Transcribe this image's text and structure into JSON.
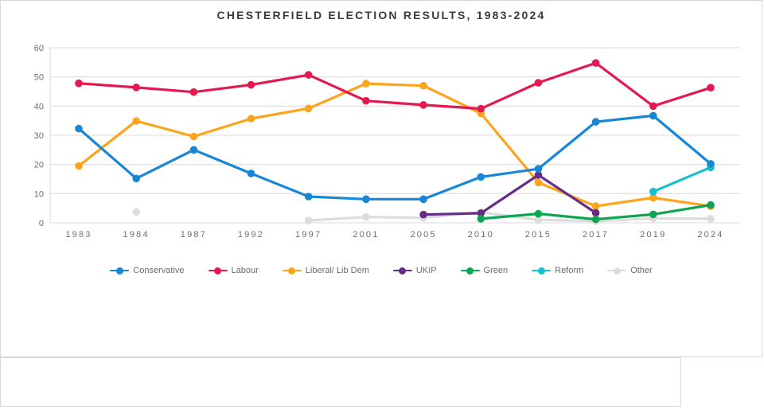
{
  "page": {
    "background": "#ffffff",
    "card_border_color": "#d7d7d7"
  },
  "chart_data": {
    "type": "line",
    "title": "CHESTERFIELD ELECTION RESULTS, 1983-2024",
    "xlabel": "",
    "ylabel": "",
    "categories": [
      "1983",
      "1984",
      "1987",
      "1992",
      "1997",
      "2001",
      "2005",
      "2010",
      "2015",
      "2017",
      "2019",
      "2024"
    ],
    "y_ticks": [
      0,
      10,
      20,
      30,
      40,
      50,
      60
    ],
    "ylim": [
      0,
      60
    ],
    "grid": true,
    "legend_position": "bottom",
    "grid_color": "#d9d9d9",
    "tick_label_color": "#6e6e6e",
    "title_color": "#3a3a3a",
    "series": [
      {
        "id": "conservative",
        "name": "Conservative",
        "color": "#1787d5",
        "values": [
          32.3,
          15.2,
          25.0,
          16.9,
          9.0,
          8.1,
          8.1,
          15.7,
          18.5,
          34.6,
          36.7,
          20.2
        ]
      },
      {
        "id": "labour",
        "name": "Labour",
        "color": "#e31a50",
        "values": [
          47.8,
          46.4,
          44.8,
          47.3,
          50.7,
          41.8,
          40.4,
          39.1,
          48.0,
          54.8,
          40.0,
          46.3
        ]
      },
      {
        "id": "libdem",
        "name": "Liberal/ Lib Dem",
        "color": "#fca41d",
        "values": [
          19.5,
          34.9,
          29.6,
          35.7,
          39.2,
          47.7,
          47.0,
          37.5,
          13.8,
          5.7,
          8.6,
          5.7
        ]
      },
      {
        "id": "ukip",
        "name": "UKIP",
        "color": "#652d87",
        "values": [
          null,
          null,
          null,
          null,
          null,
          null,
          2.8,
          3.3,
          16.4,
          3.4,
          null,
          null
        ]
      },
      {
        "id": "green",
        "name": "Green",
        "color": "#0ca651",
        "values": [
          null,
          null,
          null,
          null,
          null,
          null,
          null,
          1.4,
          3.1,
          1.2,
          2.9,
          6.1
        ]
      },
      {
        "id": "reform",
        "name": "Reform",
        "color": "#14bfce",
        "values": [
          null,
          null,
          null,
          null,
          null,
          null,
          null,
          null,
          null,
          null,
          10.7,
          19.0
        ]
      },
      {
        "id": "other",
        "name": "Other",
        "color": "#dcdcdc",
        "values": [
          null,
          3.7,
          null,
          null,
          0.8,
          2.0,
          1.7,
          3.6,
          1.0,
          0.6,
          1.5,
          1.4
        ]
      }
    ],
    "draw_order": [
      "other",
      "libdem",
      "ukip",
      "green",
      "reform",
      "labour",
      "conservative"
    ]
  }
}
